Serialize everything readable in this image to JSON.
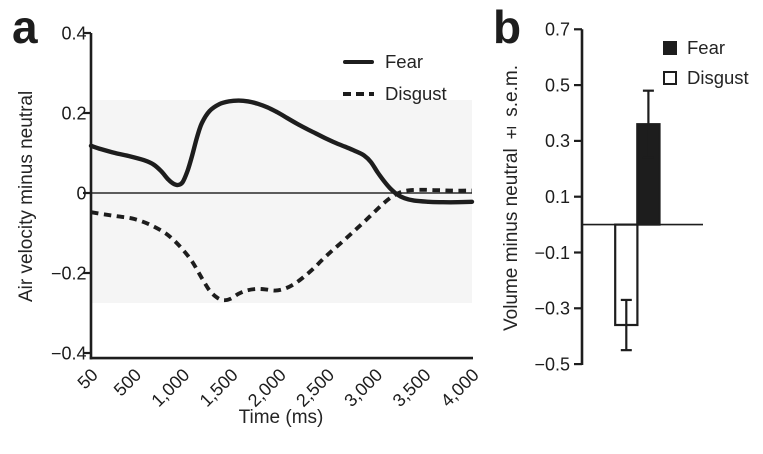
{
  "panels": {
    "a": {
      "letter": "a"
    },
    "b": {
      "letter": "b"
    }
  },
  "colors": {
    "ink": "#1d1d1d",
    "text": "#242424",
    "background_band": "#f5f5f5",
    "bar_fear_fill": "#1d1d1d",
    "bar_disgust_fill": "#ffffff"
  },
  "chart_data": [
    {
      "type": "line",
      "panel": "a",
      "title": "",
      "xlabel": "Time (ms)",
      "ylabel": "Air velocity minus neutral",
      "xlim": [
        50,
        4000
      ],
      "ylim": [
        -0.4,
        0.4
      ],
      "xticks": [
        50,
        500,
        1000,
        1500,
        2000,
        2500,
        3000,
        3500,
        4000
      ],
      "xtick_labels": [
        "50",
        "500",
        "1,000",
        "1,500",
        "2,000",
        "2,500",
        "3,000",
        "3,500",
        "4,000"
      ],
      "yticks": [
        0.4,
        0.2,
        0,
        -0.2,
        -0.4
      ],
      "ytick_labels": [
        "0.4",
        "0.2",
        "0",
        "−0.2",
        "−0.4"
      ],
      "grid": false,
      "zero_line": true,
      "legend_position": "top-right",
      "series": [
        {
          "name": "Fear",
          "line_style": "solid",
          "points": [
            [
              50,
              0.118
            ],
            [
              150,
              0.11
            ],
            [
              300,
              0.1
            ],
            [
              450,
              0.092
            ],
            [
              600,
              0.082
            ],
            [
              700,
              0.071
            ],
            [
              780,
              0.054
            ],
            [
              850,
              0.034
            ],
            [
              900,
              0.024
            ],
            [
              950,
              0.02
            ],
            [
              1000,
              0.027
            ],
            [
              1050,
              0.055
            ],
            [
              1100,
              0.095
            ],
            [
              1150,
              0.14
            ],
            [
              1200,
              0.175
            ],
            [
              1280,
              0.205
            ],
            [
              1380,
              0.222
            ],
            [
              1480,
              0.229
            ],
            [
              1580,
              0.231
            ],
            [
              1680,
              0.229
            ],
            [
              1780,
              0.223
            ],
            [
              1880,
              0.214
            ],
            [
              1980,
              0.202
            ],
            [
              2080,
              0.188
            ],
            [
              2180,
              0.174
            ],
            [
              2280,
              0.161
            ],
            [
              2380,
              0.149
            ],
            [
              2480,
              0.137
            ],
            [
              2580,
              0.126
            ],
            [
              2680,
              0.116
            ],
            [
              2780,
              0.106
            ],
            [
              2880,
              0.094
            ],
            [
              2950,
              0.078
            ],
            [
              3020,
              0.052
            ],
            [
              3080,
              0.032
            ],
            [
              3150,
              0.012
            ],
            [
              3220,
              -0.003
            ],
            [
              3300,
              -0.013
            ],
            [
              3400,
              -0.019
            ],
            [
              3550,
              -0.022
            ],
            [
              3700,
              -0.023
            ],
            [
              3850,
              -0.023
            ],
            [
              4000,
              -0.022
            ]
          ]
        },
        {
          "name": "Disgust",
          "line_style": "dashed",
          "points": [
            [
              50,
              -0.048
            ],
            [
              200,
              -0.054
            ],
            [
              350,
              -0.059
            ],
            [
              500,
              -0.065
            ],
            [
              650,
              -0.078
            ],
            [
              800,
              -0.097
            ],
            [
              900,
              -0.116
            ],
            [
              1000,
              -0.141
            ],
            [
              1100,
              -0.172
            ],
            [
              1200,
              -0.213
            ],
            [
              1280,
              -0.244
            ],
            [
              1360,
              -0.262
            ],
            [
              1430,
              -0.268
            ],
            [
              1500,
              -0.264
            ],
            [
              1580,
              -0.252
            ],
            [
              1660,
              -0.244
            ],
            [
              1760,
              -0.24
            ],
            [
              1860,
              -0.241
            ],
            [
              1960,
              -0.244
            ],
            [
              2060,
              -0.239
            ],
            [
              2160,
              -0.227
            ],
            [
              2260,
              -0.209
            ],
            [
              2360,
              -0.188
            ],
            [
              2460,
              -0.164
            ],
            [
              2560,
              -0.142
            ],
            [
              2660,
              -0.121
            ],
            [
              2760,
              -0.099
            ],
            [
              2860,
              -0.077
            ],
            [
              2960,
              -0.054
            ],
            [
              3060,
              -0.031
            ],
            [
              3160,
              -0.011
            ],
            [
              3260,
              0.002
            ],
            [
              3360,
              0.007
            ],
            [
              3500,
              0.008
            ],
            [
              3650,
              0.007
            ],
            [
              3800,
              0.006
            ],
            [
              4000,
              0.006
            ]
          ]
        }
      ]
    },
    {
      "type": "bar",
      "panel": "b",
      "title": "",
      "xlabel": "",
      "ylabel": "Volume minus neutral ± s.e.m.",
      "ylim": [
        -0.5,
        0.7
      ],
      "yticks": [
        0.7,
        0.5,
        0.3,
        0.1,
        -0.1,
        -0.3,
        -0.5
      ],
      "ytick_labels": [
        "0.7",
        "0.5",
        "0.3",
        "0.1",
        "−0.1",
        "−0.3",
        "−0.5"
      ],
      "grid": false,
      "zero_line": true,
      "legend_position": "top-right",
      "error_bars": "s.e.m.",
      "bars": [
        {
          "name": "Fear",
          "value": 0.36,
          "sem": 0.12,
          "fill": "solid",
          "x_order": 2
        },
        {
          "name": "Disgust",
          "value": -0.36,
          "sem": 0.09,
          "fill": "open",
          "x_order": 1
        }
      ]
    }
  ]
}
